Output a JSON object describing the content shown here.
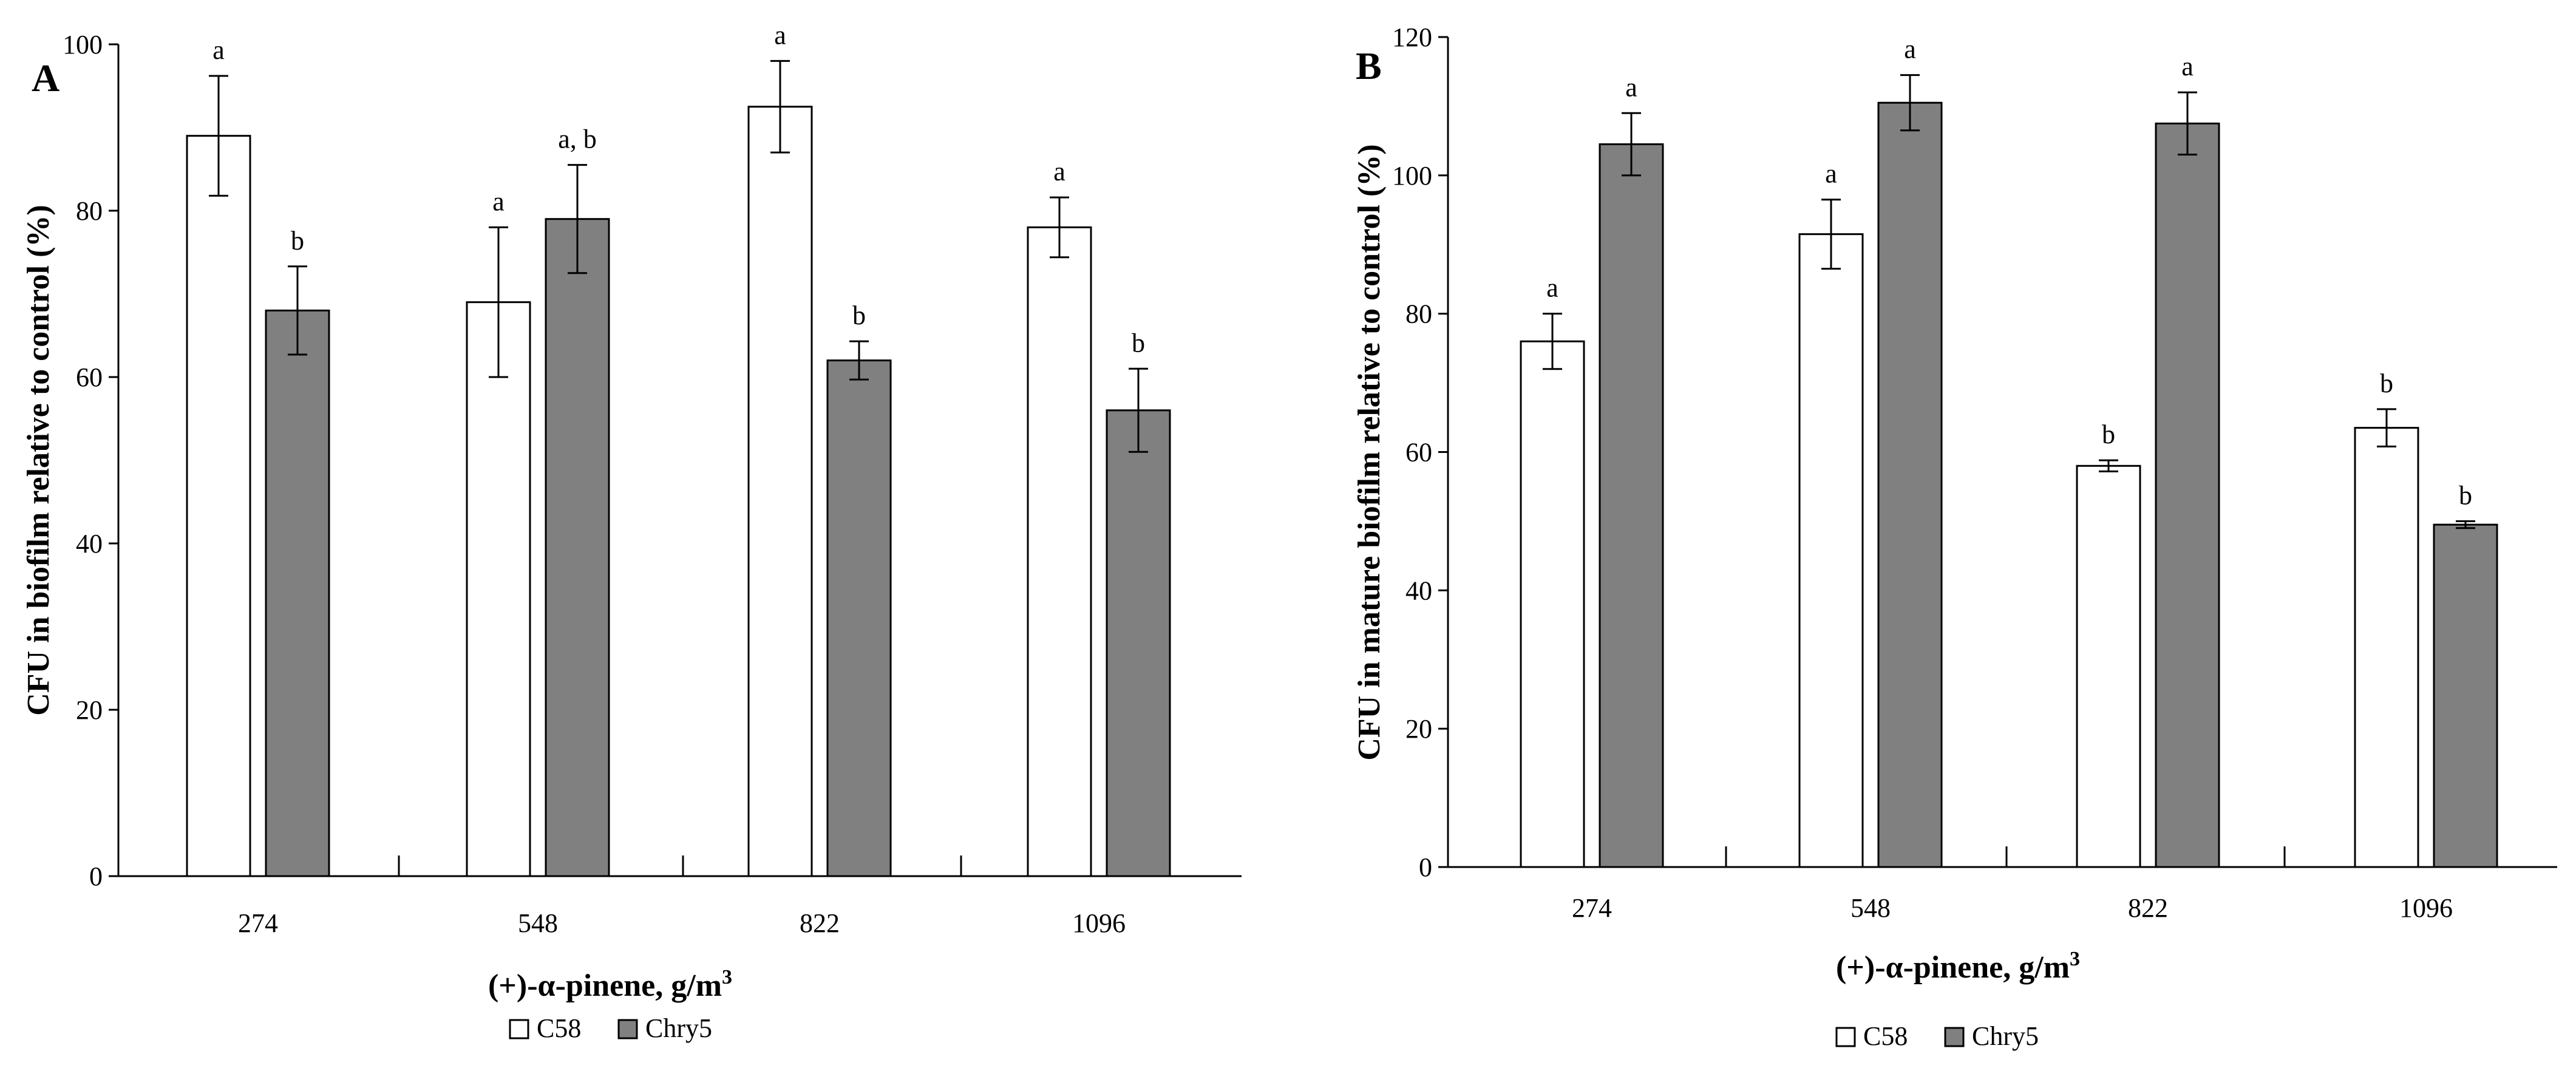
{
  "chart_data": [
    {
      "panel": "A",
      "type": "bar",
      "title": "",
      "xlabel": "(+)-α-pinene, g/m3",
      "xlabel_main": "(+)-α-pinene, g/m",
      "xlabel_sup": "3",
      "ylabel": "CFU in biofilm relative to control (%)",
      "ylim": [
        0,
        100
      ],
      "yticks": [
        0,
        20,
        40,
        60,
        80,
        100
      ],
      "categories": [
        "274",
        "548",
        "822",
        "1096"
      ],
      "series": [
        {
          "name": "C58",
          "color": "#ffffff",
          "values": [
            89,
            69,
            92.5,
            78
          ],
          "errors": [
            7.2,
            9,
            5.5,
            3.6
          ],
          "labels": [
            "a",
            "a",
            "a",
            "a"
          ]
        },
        {
          "name": "Chry5",
          "color": "#808080",
          "values": [
            68,
            79,
            62,
            56
          ],
          "errors": [
            5.3,
            6.5,
            2.3,
            5
          ],
          "labels": [
            "b",
            "a, b",
            "b",
            "b"
          ]
        }
      ],
      "legend": [
        "C58",
        "Chry5"
      ],
      "legend_position": "bottom-center"
    },
    {
      "panel": "B",
      "type": "bar",
      "title": "",
      "xlabel": "(+)-α-pinene, g/m3",
      "xlabel_main": "(+)-α-pinene, g/m",
      "xlabel_sup": "3",
      "ylabel": "CFU in mature biofilm relative to control (%)",
      "ylim": [
        0,
        120
      ],
      "yticks": [
        0,
        20,
        40,
        60,
        80,
        100,
        120
      ],
      "categories": [
        "274",
        "548",
        "822",
        "1096"
      ],
      "series": [
        {
          "name": "C58",
          "color": "#ffffff",
          "values": [
            76,
            91.5,
            58,
            63.5
          ],
          "errors": [
            4,
            5,
            0.8,
            2.7
          ],
          "labels": [
            "a",
            "a",
            "b",
            "b"
          ]
        },
        {
          "name": "Chry5",
          "color": "#808080",
          "values": [
            104.5,
            110.5,
            107.5,
            49.5
          ],
          "errors": [
            4.5,
            4,
            4.5,
            0.5
          ],
          "labels": [
            "a",
            "a",
            "a",
            "b"
          ]
        }
      ],
      "legend": [
        "C58",
        "Chry5"
      ],
      "legend_position": "bottom-center"
    }
  ]
}
